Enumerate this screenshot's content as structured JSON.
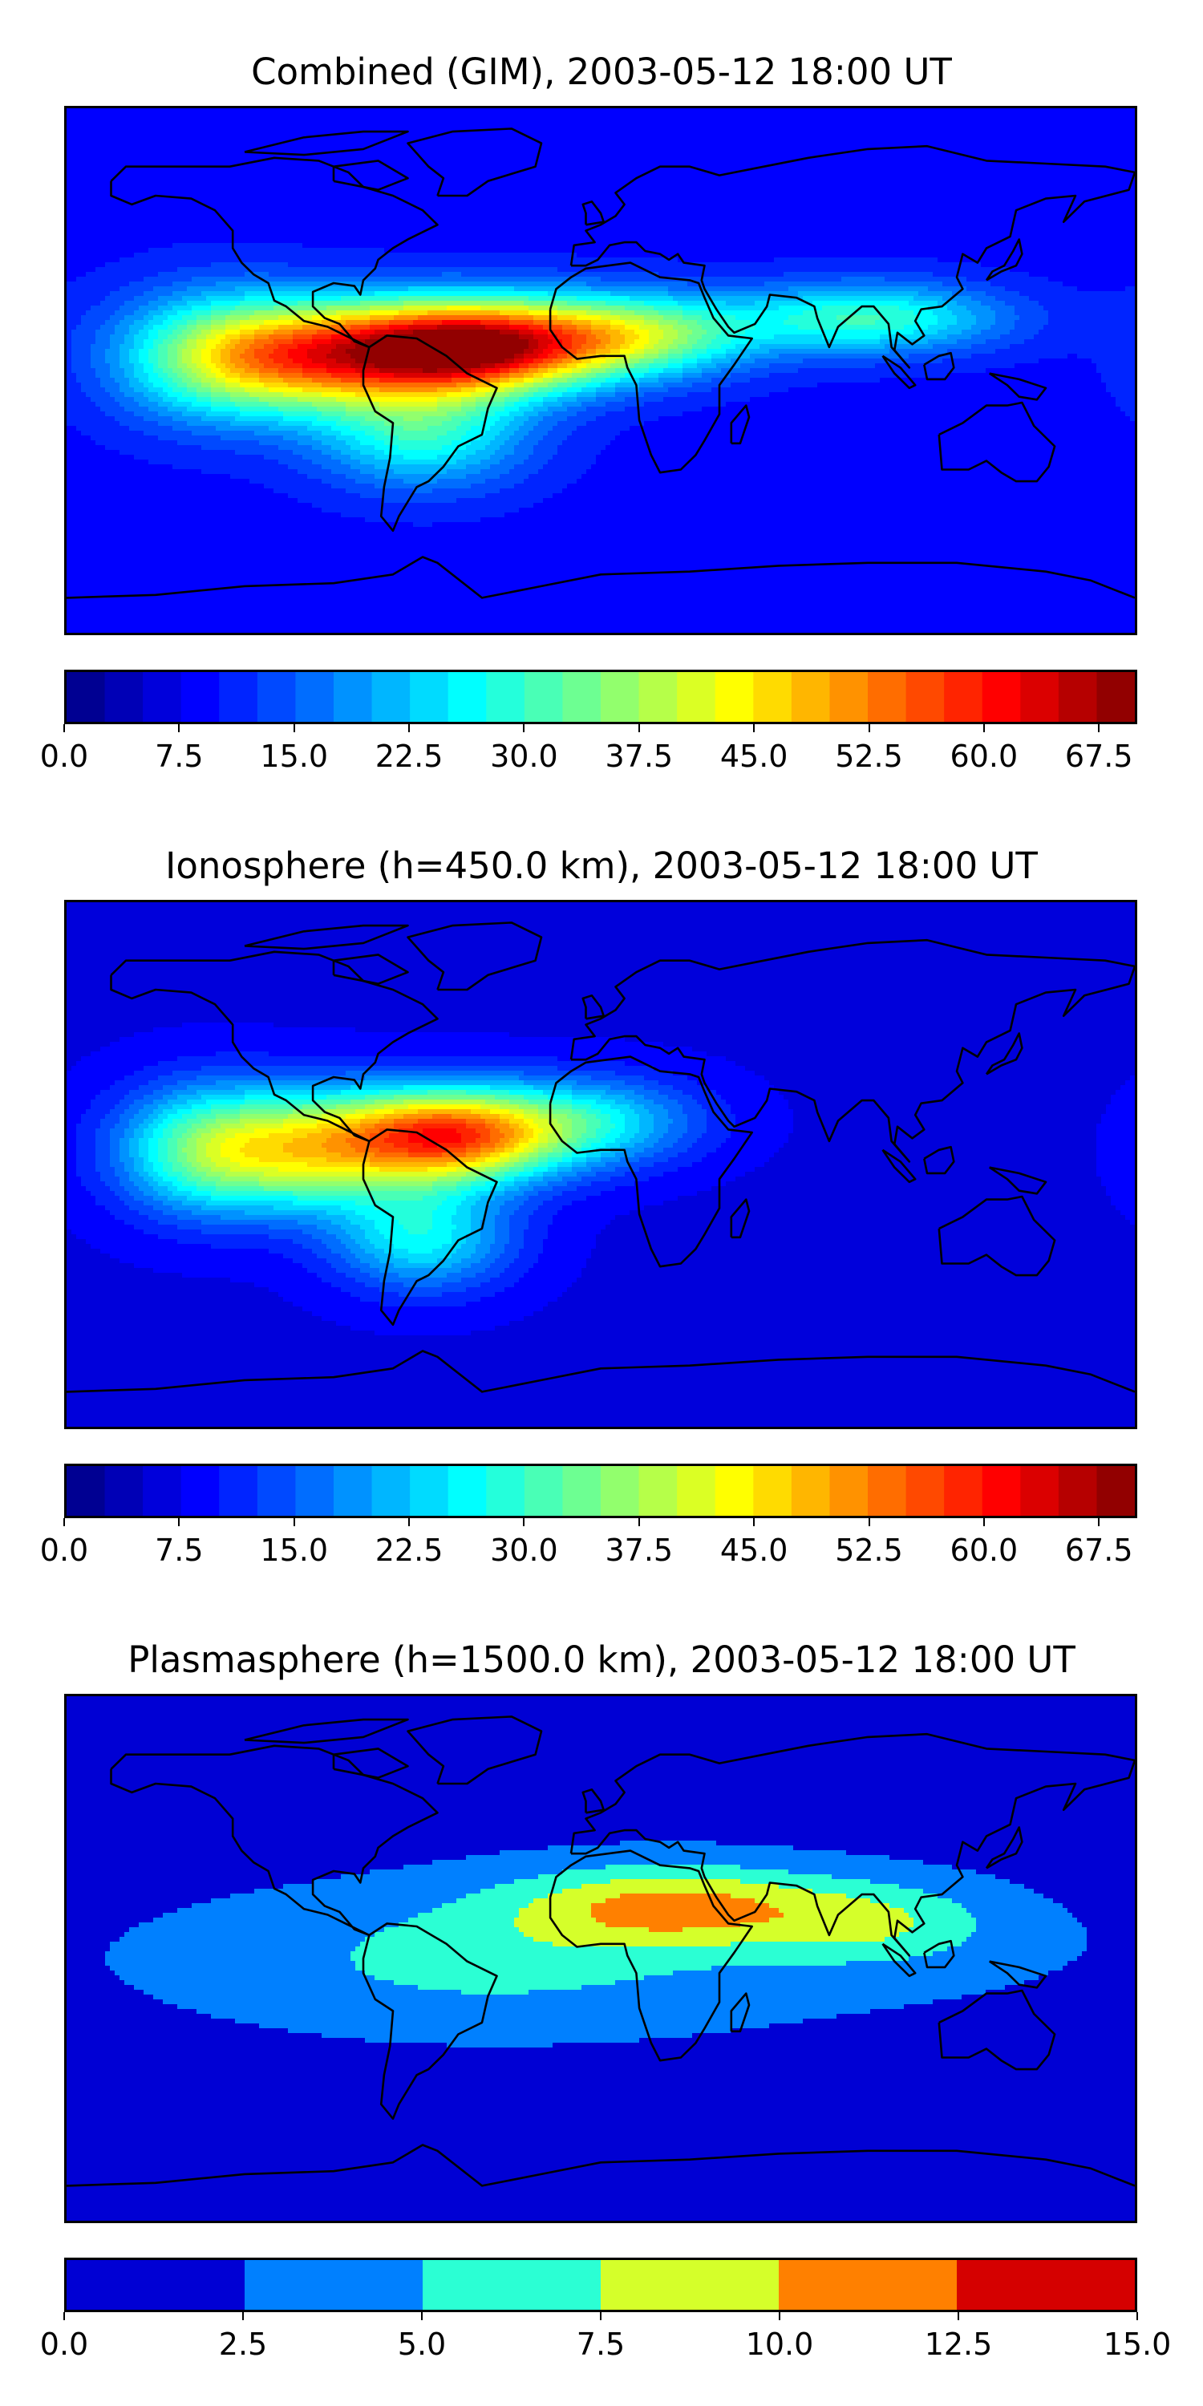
{
  "panels": [
    {
      "id": "combined",
      "title": "Combined (GIM), 2003-05-12 18:00 UT",
      "colorbar": {
        "min": 0.0,
        "max": 70.0,
        "levels": 28,
        "ticks": [
          "0.0",
          "7.5",
          "15.0",
          "22.5",
          "30.0",
          "37.5",
          "45.0",
          "52.5",
          "60.0",
          "67.5"
        ],
        "tick_values": [
          0,
          7.5,
          15,
          22.5,
          30,
          37.5,
          45,
          52.5,
          60,
          67.5
        ]
      },
      "features": [
        {
          "lon": -45,
          "lat": 8,
          "peak": 66,
          "slon": 42,
          "slat": 16
        },
        {
          "lon": -95,
          "lat": 5,
          "peak": 42,
          "slon": 40,
          "slat": 18
        },
        {
          "lon": -130,
          "lat": 5,
          "peak": 30,
          "slon": 35,
          "slat": 22
        },
        {
          "lon": 10,
          "lat": 12,
          "peak": 36,
          "slon": 40,
          "slat": 14
        },
        {
          "lon": 90,
          "lat": 18,
          "peak": 30,
          "slon": 45,
          "slat": 12
        },
        {
          "lon": -60,
          "lat": -22,
          "peak": 28,
          "slon": 35,
          "slat": 18
        }
      ],
      "background": 9
    },
    {
      "id": "ionosphere",
      "title": "Ionosphere  (h=450.0 km), 2003-05-12 18:00 UT",
      "colorbar": {
        "min": 0.0,
        "max": 70.0,
        "levels": 28,
        "ticks": [
          "0.0",
          "7.5",
          "15.0",
          "22.5",
          "30.0",
          "37.5",
          "45.0",
          "52.5",
          "60.0",
          "67.5"
        ],
        "tick_values": [
          0,
          7.5,
          15,
          22.5,
          30,
          37.5,
          45,
          52.5,
          60,
          67.5
        ]
      },
      "features": [
        {
          "lon": -50,
          "lat": 10,
          "peak": 54,
          "slon": 38,
          "slat": 16
        },
        {
          "lon": -100,
          "lat": 5,
          "peak": 36,
          "slon": 38,
          "slat": 20
        },
        {
          "lon": -135,
          "lat": 5,
          "peak": 26,
          "slon": 30,
          "slat": 22
        },
        {
          "lon": 0,
          "lat": 15,
          "peak": 22,
          "slon": 35,
          "slat": 15
        },
        {
          "lon": -60,
          "lat": -25,
          "peak": 26,
          "slon": 30,
          "slat": 18
        }
      ],
      "background": 7
    },
    {
      "id": "plasmasphere",
      "title": "Plasmasphere (h=1500.0 km), 2003-05-12 18:00 UT",
      "colorbar": {
        "min": 0.0,
        "max": 15.0,
        "levels": 6,
        "ticks": [
          "0.0",
          "2.5",
          "5.0",
          "7.5",
          "10.0",
          "12.5",
          "15.0"
        ],
        "tick_values": [
          0,
          2.5,
          5,
          7.5,
          10,
          12.5,
          15
        ]
      },
      "features": [
        {
          "lon": 25,
          "lat": 18,
          "peak": 9.5,
          "slon": 55,
          "slat": 14
        },
        {
          "lon": 95,
          "lat": 12,
          "peak": 6.0,
          "slon": 40,
          "slat": 14
        },
        {
          "lon": -40,
          "lat": 0,
          "peak": 4.5,
          "slon": 80,
          "slat": 22
        },
        {
          "lon": 0,
          "lat": 0,
          "peak": 3.0,
          "slon": 200,
          "slat": 30
        }
      ],
      "background": 1.5
    }
  ]
}
